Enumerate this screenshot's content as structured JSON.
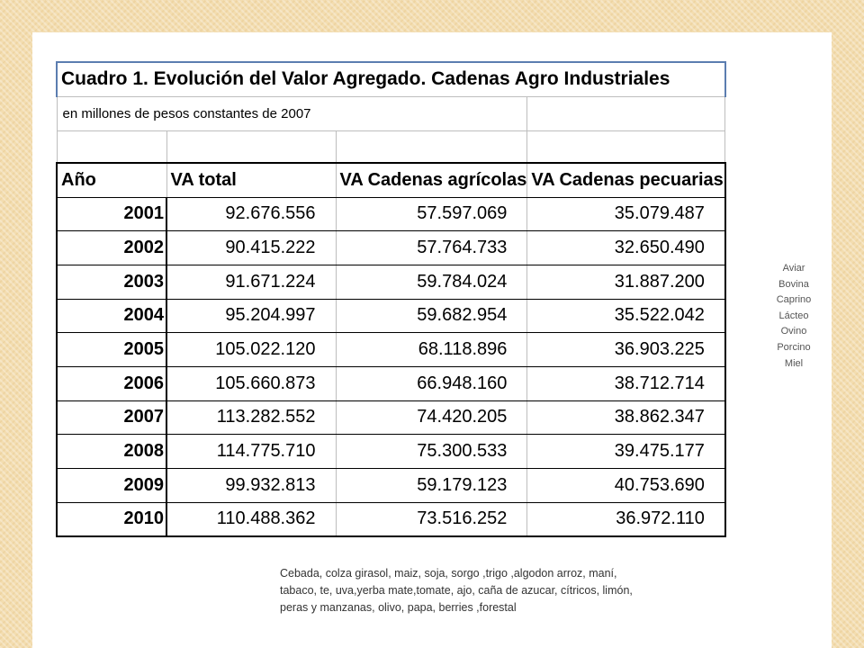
{
  "table": {
    "title": "Cuadro 1. Evolución del Valor Agregado. Cadenas Agro Industriales",
    "subtitle": "en millones de pesos constantes de 2007",
    "headers": [
      "Año",
      "VA total",
      "VA Cadenas agrícolas",
      "VA Cadenas pecuarias"
    ],
    "rows": [
      [
        "2001",
        "92.676.556",
        "57.597.069",
        "35.079.487"
      ],
      [
        "2002",
        "90.415.222",
        "57.764.733",
        "32.650.490"
      ],
      [
        "2003",
        "91.671.224",
        "59.784.024",
        "31.887.200"
      ],
      [
        "2004",
        "95.204.997",
        "59.682.954",
        "35.522.042"
      ],
      [
        "2005",
        "105.022.120",
        "68.118.896",
        "36.903.225"
      ],
      [
        "2006",
        "105.660.873",
        "66.948.160",
        "38.712.714"
      ],
      [
        "2007",
        "113.282.552",
        "74.420.205",
        "38.862.347"
      ],
      [
        "2008",
        "114.775.710",
        "75.300.533",
        "39.475.177"
      ],
      [
        "2009",
        "99.932.813",
        "59.179.123",
        "40.753.690"
      ],
      [
        "2010",
        "110.488.362",
        "73.516.252",
        "36.972.110"
      ]
    ]
  },
  "pecuarias_list": [
    "Aviar",
    "Bovina",
    "Caprino",
    "Lácteo",
    "Ovino",
    "Porcino",
    "Miel"
  ],
  "agricolas_text": "Cebada, colza girasol, maiz, soja, sorgo ,trigo ,algodon arroz, maní, tabaco, te, uva,yerba mate,tomate, ajo, caña de azucar, cítricos, limón, peras y manzanas, olivo, papa, berries ,forestal",
  "colors": {
    "background": "#f3ddb0",
    "title_border": "#5b7db0"
  }
}
